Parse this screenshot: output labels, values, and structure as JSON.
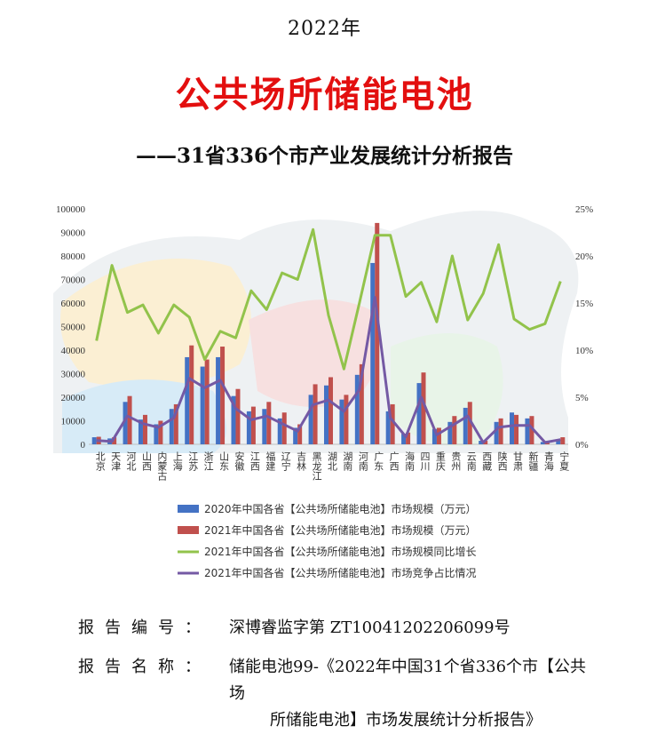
{
  "header": {
    "year": "2022年",
    "title": "公共场所储能电池",
    "subtitle": "——31省336个市产业发展统计分析报告"
  },
  "report": {
    "number_label": "报告编号：",
    "number_value": "深博睿监字第 ZT10041202206099号",
    "name_label": "报告名称：",
    "name_value_line1": "储能电池99-《2022年中国31个省336个市【公共场",
    "name_value_line2": "所储能电池】市场发展统计分析报告》"
  },
  "chart_data": {
    "type": "bar",
    "categories": [
      "北京",
      "天津",
      "河北",
      "山西",
      "内蒙古",
      "上海",
      "江苏",
      "浙江",
      "山东",
      "安徽",
      "江西",
      "福建",
      "辽宁",
      "吉林",
      "黑龙江",
      "湖北",
      "湖南",
      "河南",
      "广东",
      "广西",
      "海南",
      "四川",
      "重庆",
      "贵州",
      "云南",
      "西藏",
      "陕西",
      "甘肃",
      "新疆",
      "青海",
      "宁夏"
    ],
    "series": [
      {
        "name": "2020年中国各省【公共场所储能电池】市场规模（万元）",
        "kind": "bar",
        "axis": "left",
        "color": "#4472c4",
        "values": [
          3000,
          2500,
          18000,
          10500,
          8500,
          15000,
          37000,
          33000,
          37000,
          20500,
          14000,
          15000,
          11000,
          7000,
          21000,
          25000,
          19000,
          29500,
          77000,
          14000,
          4500,
          26000,
          6500,
          9500,
          15500,
          1500,
          9500,
          13500,
          11000,
          1000,
          2000
        ]
      },
      {
        "name": "2021年中国各省【公共场所储能电池】市场规模（万元）",
        "kind": "bar",
        "axis": "left",
        "color": "#c0504d",
        "values": [
          3200,
          3000,
          20500,
          12500,
          10000,
          17000,
          42000,
          36000,
          41500,
          23500,
          16000,
          18000,
          13500,
          8500,
          25500,
          28500,
          21000,
          34000,
          94000,
          17000,
          5000,
          30500,
          7000,
          12000,
          18000,
          1500,
          11000,
          12500,
          12000,
          1200,
          3000
        ]
      },
      {
        "name": "2021年中国各省【公共场所储能电池】市场规模同比增长",
        "kind": "line",
        "axis": "right",
        "color": "#92c34b",
        "values": [
          0.11,
          0.19,
          0.14,
          0.148,
          0.118,
          0.148,
          0.135,
          0.09,
          0.12,
          0.113,
          0.163,
          0.143,
          0.182,
          0.175,
          0.228,
          0.137,
          0.08,
          0.15,
          0.222,
          0.222,
          0.157,
          0.172,
          0.13,
          0.2,
          0.132,
          0.16,
          0.212,
          0.133,
          0.122,
          0.128,
          0.173
        ]
      },
      {
        "name": "2021年中国各省【公共场所储能电池】市场竞争占比情况",
        "kind": "line",
        "axis": "right",
        "color": "#7459a4",
        "values": [
          0.004,
          0.003,
          0.03,
          0.022,
          0.018,
          0.028,
          0.07,
          0.06,
          0.068,
          0.038,
          0.026,
          0.03,
          0.022,
          0.014,
          0.042,
          0.047,
          0.035,
          0.058,
          0.156,
          0.028,
          0.008,
          0.05,
          0.01,
          0.02,
          0.03,
          0.002,
          0.018,
          0.02,
          0.02,
          0.002,
          0.005
        ]
      }
    ],
    "ylim_left": [
      0,
      100000
    ],
    "yticks_left": [
      "0",
      "10000",
      "20000",
      "30000",
      "40000",
      "50000",
      "60000",
      "70000",
      "80000",
      "90000",
      "100000"
    ],
    "ylim_right": [
      0,
      0.25
    ],
    "yticks_right": [
      "0%",
      "5%",
      "10%",
      "15%",
      "20%",
      "25%"
    ],
    "legend_position": "bottom"
  }
}
